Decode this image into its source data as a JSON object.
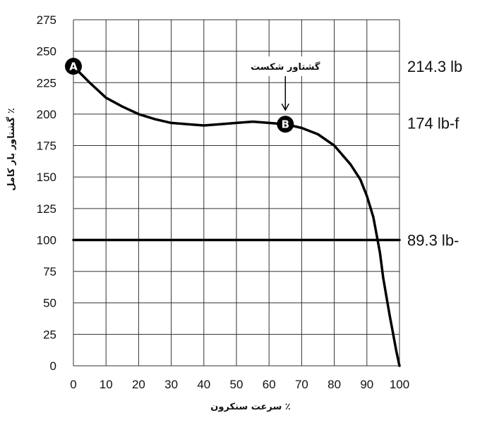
{
  "chart_data": {
    "type": "line",
    "xlabel": "٪ سرعت سنکرون",
    "ylabel": "٪ گشتاور بار کامل",
    "xlim": [
      0,
      100
    ],
    "ylim": [
      0,
      275
    ],
    "x_ticks": [
      "0",
      "10",
      "20",
      "30",
      "40",
      "50",
      "60",
      "70",
      "80",
      "90",
      "100"
    ],
    "y_ticks": [
      "0",
      "25",
      "50",
      "75",
      "100",
      "125",
      "150",
      "175",
      "200",
      "225",
      "250",
      "275"
    ],
    "grid": true,
    "series": [
      {
        "x": [
          0,
          5,
          10,
          15,
          20,
          25,
          30,
          35,
          40,
          45,
          50,
          55,
          60,
          65,
          70,
          75,
          80,
          85,
          88,
          90,
          92,
          94,
          95,
          96,
          97,
          98,
          99,
          100
        ],
        "y": [
          238,
          225,
          213,
          206,
          200,
          196,
          193,
          192,
          191,
          192,
          193,
          194,
          193,
          192,
          189,
          184,
          175,
          160,
          148,
          135,
          118,
          90,
          70,
          55,
          40,
          26,
          12,
          0
        ]
      },
      {
        "x": [
          0,
          100
        ],
        "y": [
          100,
          100
        ]
      }
    ],
    "points": [
      {
        "label": "A",
        "x": 0,
        "y": 238
      },
      {
        "label": "B",
        "x": 65,
        "y": 192
      }
    ],
    "annotations": [
      {
        "text": "گشتاور شکست",
        "x": 65,
        "y": 238
      }
    ],
    "right_labels": [
      {
        "text": "214.3 lb",
        "y": 238
      },
      {
        "text": "174 lb-f",
        "y": 193
      },
      {
        "text": "89.3 lb-",
        "y": 100
      }
    ]
  }
}
